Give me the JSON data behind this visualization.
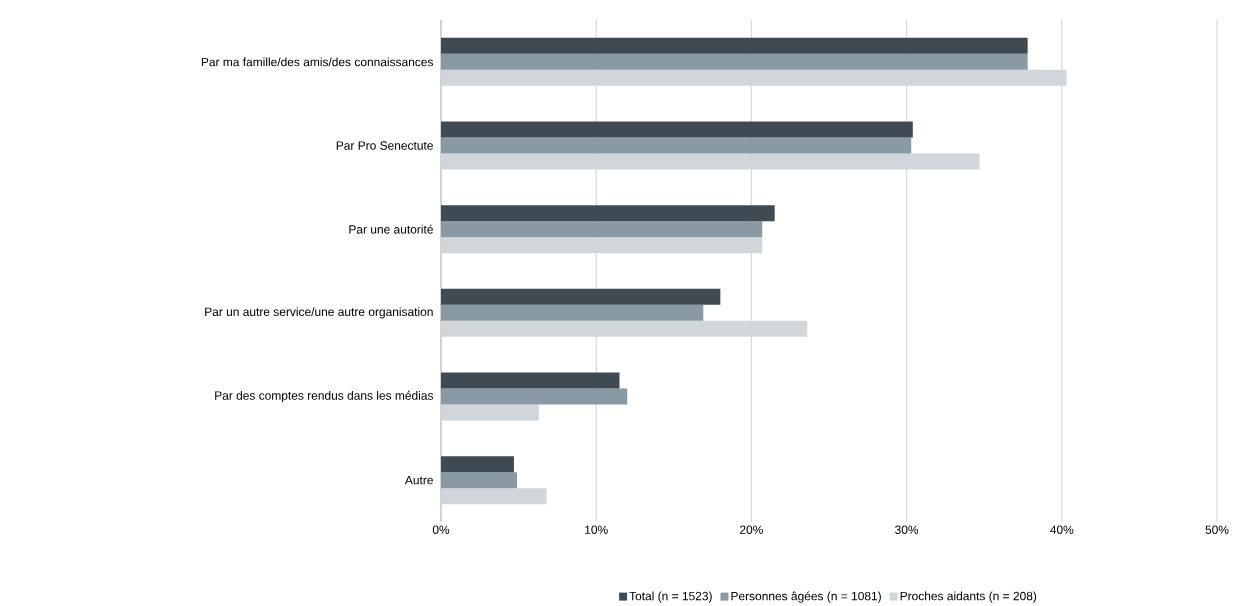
{
  "chart_data": {
    "type": "bar",
    "orientation": "horizontal",
    "categories": [
      "Par ma famille/des amis/des connaissances",
      "Par Pro Senectute",
      "Par une autorité",
      "Par un autre service/une autre organisation",
      "Par des comptes rendus dans les médias",
      "Autre"
    ],
    "series": [
      {
        "name": "Total (n = 1523)",
        "color": "#3f4a53",
        "values": [
          37.8,
          30.4,
          21.5,
          18.0,
          11.5,
          4.7
        ]
      },
      {
        "name": "Personnes âgées (n = 1081)",
        "color": "#8a9aa4",
        "values": [
          37.8,
          30.3,
          20.7,
          16.9,
          12.0,
          4.9
        ]
      },
      {
        "name": "Proches aidants (n = 208)",
        "color": "#d0d6d9",
        "values": [
          40.3,
          34.7,
          20.7,
          23.6,
          6.3,
          6.8
        ]
      }
    ],
    "xlim": [
      0,
      50
    ],
    "xticks": [
      {
        "value": 0,
        "label": "0%"
      },
      {
        "value": 10,
        "label": "10%"
      },
      {
        "value": 20,
        "label": "20%"
      },
      {
        "value": 30,
        "label": "30%"
      },
      {
        "value": 40,
        "label": "40%"
      },
      {
        "value": 50,
        "label": "50%"
      }
    ],
    "grid": "x",
    "legend": "bottom"
  }
}
